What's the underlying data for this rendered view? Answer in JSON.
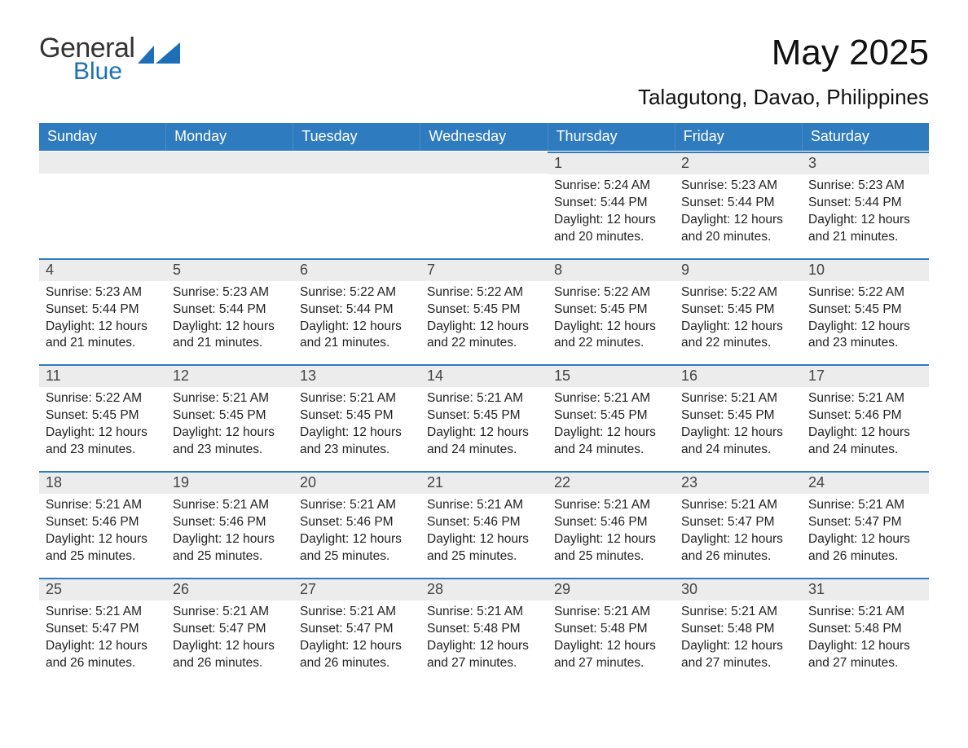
{
  "logo": {
    "word1": "General",
    "word2": "Blue",
    "mark_color": "#1e6fb8"
  },
  "title": "May 2025",
  "location": "Talagutong, Davao, Philippines",
  "header_bg": "#2f7bbf",
  "header_fg": "#ffffff",
  "datebar_bg": "#ececec",
  "datebar_border": "#2f7bbf",
  "day_names": [
    "Sunday",
    "Monday",
    "Tuesday",
    "Wednesday",
    "Thursday",
    "Friday",
    "Saturday"
  ],
  "weeks": [
    [
      null,
      null,
      null,
      null,
      {
        "d": "1",
        "sr": "5:24 AM",
        "ss": "5:44 PM",
        "dl": "12 hours and 20 minutes."
      },
      {
        "d": "2",
        "sr": "5:23 AM",
        "ss": "5:44 PM",
        "dl": "12 hours and 20 minutes."
      },
      {
        "d": "3",
        "sr": "5:23 AM",
        "ss": "5:44 PM",
        "dl": "12 hours and 21 minutes."
      }
    ],
    [
      {
        "d": "4",
        "sr": "5:23 AM",
        "ss": "5:44 PM",
        "dl": "12 hours and 21 minutes."
      },
      {
        "d": "5",
        "sr": "5:23 AM",
        "ss": "5:44 PM",
        "dl": "12 hours and 21 minutes."
      },
      {
        "d": "6",
        "sr": "5:22 AM",
        "ss": "5:44 PM",
        "dl": "12 hours and 21 minutes."
      },
      {
        "d": "7",
        "sr": "5:22 AM",
        "ss": "5:45 PM",
        "dl": "12 hours and 22 minutes."
      },
      {
        "d": "8",
        "sr": "5:22 AM",
        "ss": "5:45 PM",
        "dl": "12 hours and 22 minutes."
      },
      {
        "d": "9",
        "sr": "5:22 AM",
        "ss": "5:45 PM",
        "dl": "12 hours and 22 minutes."
      },
      {
        "d": "10",
        "sr": "5:22 AM",
        "ss": "5:45 PM",
        "dl": "12 hours and 23 minutes."
      }
    ],
    [
      {
        "d": "11",
        "sr": "5:22 AM",
        "ss": "5:45 PM",
        "dl": "12 hours and 23 minutes."
      },
      {
        "d": "12",
        "sr": "5:21 AM",
        "ss": "5:45 PM",
        "dl": "12 hours and 23 minutes."
      },
      {
        "d": "13",
        "sr": "5:21 AM",
        "ss": "5:45 PM",
        "dl": "12 hours and 23 minutes."
      },
      {
        "d": "14",
        "sr": "5:21 AM",
        "ss": "5:45 PM",
        "dl": "12 hours and 24 minutes."
      },
      {
        "d": "15",
        "sr": "5:21 AM",
        "ss": "5:45 PM",
        "dl": "12 hours and 24 minutes."
      },
      {
        "d": "16",
        "sr": "5:21 AM",
        "ss": "5:45 PM",
        "dl": "12 hours and 24 minutes."
      },
      {
        "d": "17",
        "sr": "5:21 AM",
        "ss": "5:46 PM",
        "dl": "12 hours and 24 minutes."
      }
    ],
    [
      {
        "d": "18",
        "sr": "5:21 AM",
        "ss": "5:46 PM",
        "dl": "12 hours and 25 minutes."
      },
      {
        "d": "19",
        "sr": "5:21 AM",
        "ss": "5:46 PM",
        "dl": "12 hours and 25 minutes."
      },
      {
        "d": "20",
        "sr": "5:21 AM",
        "ss": "5:46 PM",
        "dl": "12 hours and 25 minutes."
      },
      {
        "d": "21",
        "sr": "5:21 AM",
        "ss": "5:46 PM",
        "dl": "12 hours and 25 minutes."
      },
      {
        "d": "22",
        "sr": "5:21 AM",
        "ss": "5:46 PM",
        "dl": "12 hours and 25 minutes."
      },
      {
        "d": "23",
        "sr": "5:21 AM",
        "ss": "5:47 PM",
        "dl": "12 hours and 26 minutes."
      },
      {
        "d": "24",
        "sr": "5:21 AM",
        "ss": "5:47 PM",
        "dl": "12 hours and 26 minutes."
      }
    ],
    [
      {
        "d": "25",
        "sr": "5:21 AM",
        "ss": "5:47 PM",
        "dl": "12 hours and 26 minutes."
      },
      {
        "d": "26",
        "sr": "5:21 AM",
        "ss": "5:47 PM",
        "dl": "12 hours and 26 minutes."
      },
      {
        "d": "27",
        "sr": "5:21 AM",
        "ss": "5:47 PM",
        "dl": "12 hours and 26 minutes."
      },
      {
        "d": "28",
        "sr": "5:21 AM",
        "ss": "5:48 PM",
        "dl": "12 hours and 27 minutes."
      },
      {
        "d": "29",
        "sr": "5:21 AM",
        "ss": "5:48 PM",
        "dl": "12 hours and 27 minutes."
      },
      {
        "d": "30",
        "sr": "5:21 AM",
        "ss": "5:48 PM",
        "dl": "12 hours and 27 minutes."
      },
      {
        "d": "31",
        "sr": "5:21 AM",
        "ss": "5:48 PM",
        "dl": "12 hours and 27 minutes."
      }
    ]
  ],
  "labels": {
    "sunrise": "Sunrise:",
    "sunset": "Sunset:",
    "daylight": "Daylight:"
  }
}
